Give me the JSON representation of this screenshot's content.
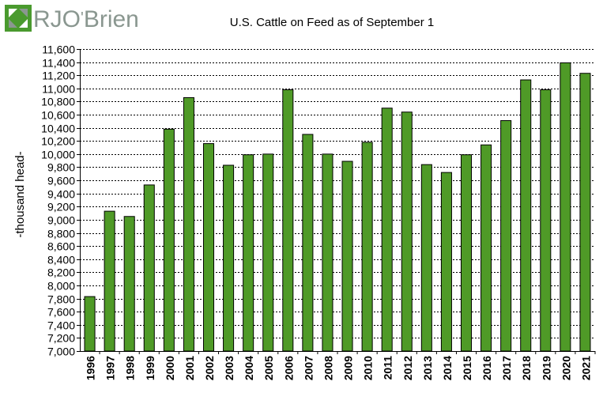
{
  "brand": {
    "logo_text_main": "RJO",
    "logo_text_sup": "'",
    "logo_text_tail": "Brien",
    "colors": {
      "green": "#4a9a2e",
      "grey": "#8a9790"
    }
  },
  "chart_data": {
    "type": "bar",
    "title": "U.S. Cattle on Feed as of September 1",
    "xlabel": "",
    "ylabel": "-thousand head-",
    "ylim": [
      7000,
      11600
    ],
    "ytick_step": 200,
    "ytick_labels": [
      "7,000",
      "7,200",
      "7,400",
      "7,600",
      "7,800",
      "8,000",
      "8,200",
      "8,400",
      "8,600",
      "8,800",
      "9,000",
      "9,200",
      "9,400",
      "9,600",
      "9,800",
      "10,000",
      "10,200",
      "10,400",
      "10,600",
      "10,800",
      "11,000",
      "11,200",
      "11,400",
      "11,600"
    ],
    "grid": true,
    "bar_color": "#4f9a27",
    "categories": [
      "1996",
      "1997",
      "1998",
      "1999",
      "2000",
      "2001",
      "2002",
      "2003",
      "2004",
      "2005",
      "2006",
      "2007",
      "2008",
      "2009",
      "2010",
      "2011",
      "2012",
      "2013",
      "2014",
      "2015",
      "2016",
      "2017",
      "2018",
      "2019",
      "2020",
      "2021"
    ],
    "values": [
      7830,
      9130,
      9050,
      9530,
      10380,
      10860,
      10160,
      9830,
      9990,
      10000,
      10980,
      10300,
      10000,
      9890,
      10180,
      10700,
      10640,
      9840,
      9720,
      9990,
      10140,
      10510,
      11130,
      10980,
      11390,
      11230
    ]
  }
}
